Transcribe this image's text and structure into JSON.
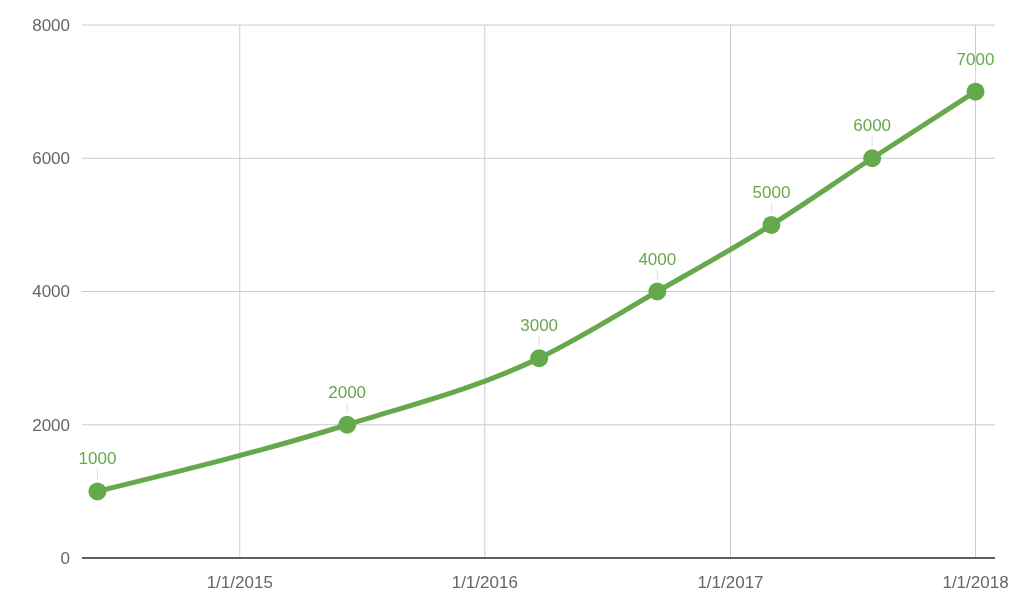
{
  "chart_data": {
    "type": "line",
    "x": [
      "2014-06-03",
      "2015-06-10",
      "2016-03-22",
      "2016-09-14",
      "2017-03-03",
      "2017-07-31",
      "2018-01-01"
    ],
    "series": [
      {
        "color": "#66a84c",
        "values": [
          1000,
          2000,
          3000,
          4000,
          5000,
          6000,
          7000
        ]
      }
    ],
    "xlim": [
      "2014-05-11",
      "2018-01-30"
    ],
    "xticks": [
      {
        "value": "2015-01-01",
        "label": "1/1/2015"
      },
      {
        "value": "2016-01-01",
        "label": "1/1/2016"
      },
      {
        "value": "2017-01-01",
        "label": "1/1/2017"
      },
      {
        "value": "2018-01-01",
        "label": "1/1/2018"
      }
    ],
    "ylim": [
      0,
      8000
    ],
    "yticks": [
      0,
      2000,
      4000,
      6000,
      8000
    ],
    "grid": true,
    "marker": "circle",
    "line_style": "solid",
    "data_labels": true
  }
}
